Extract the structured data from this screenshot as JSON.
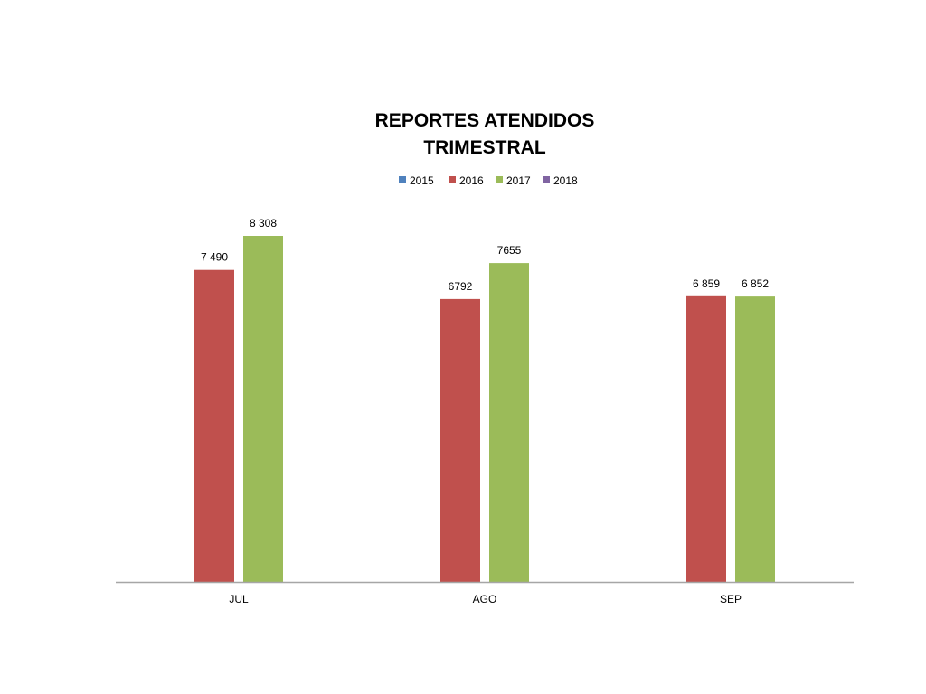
{
  "chart_data": {
    "type": "bar",
    "title_lines": [
      "REPORTES ATENDIDOS",
      "TRIMESTRAL"
    ],
    "categories": [
      "JUL",
      "AGO",
      "SEP"
    ],
    "series": [
      {
        "name": "2015",
        "color": "#4F81BD",
        "values": [
          null,
          null,
          null
        ],
        "labels": [
          "",
          "",
          ""
        ]
      },
      {
        "name": "2016",
        "color": "#C0504D",
        "values": [
          7490,
          6792,
          6859
        ],
        "labels": [
          "7 490",
          "6792",
          "6 859"
        ]
      },
      {
        "name": "2017",
        "color": "#9BBB59",
        "values": [
          8308,
          7655,
          6852
        ],
        "labels": [
          "8 308",
          "7655",
          "6 852"
        ]
      },
      {
        "name": "2018",
        "color": "#8064A2",
        "values": [
          null,
          null,
          null
        ],
        "labels": [
          "",
          "",
          ""
        ]
      }
    ],
    "ylim": [
      0,
      8308
    ],
    "legend_position": "top",
    "grid": false,
    "axis_color": "#A6A6A6"
  }
}
